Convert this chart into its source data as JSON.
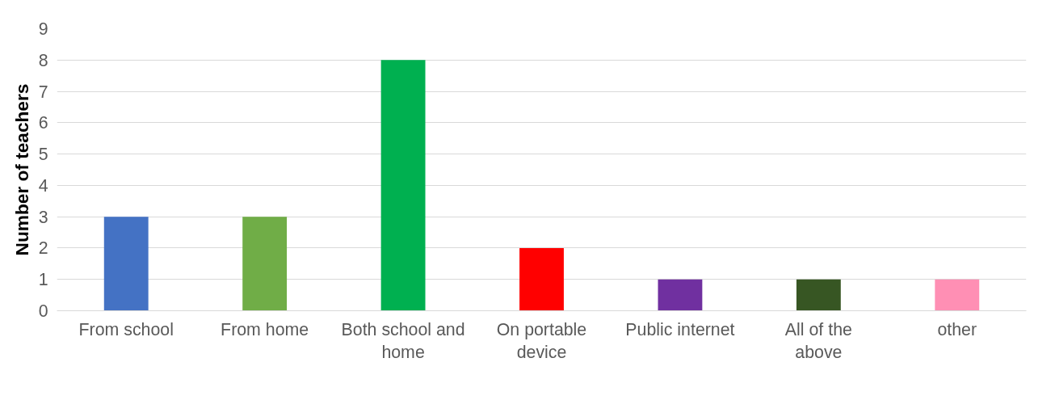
{
  "chart_data": {
    "type": "bar",
    "ylabel": "Number of teachers",
    "categories": [
      "From school",
      "From home",
      "Both school and home",
      "On portable device",
      "Public internet",
      "All of the above",
      "other"
    ],
    "values": [
      3,
      3,
      8,
      2,
      1,
      1,
      1
    ],
    "colors": [
      "#4472c4",
      "#70ad47",
      "#00b050",
      "#ff0000",
      "#7030a0",
      "#375623",
      "#ff8fb4"
    ],
    "ylim": [
      0,
      9
    ],
    "yticks": [
      0,
      1,
      2,
      3,
      4,
      5,
      6,
      7,
      8,
      9
    ],
    "grid": "y"
  }
}
